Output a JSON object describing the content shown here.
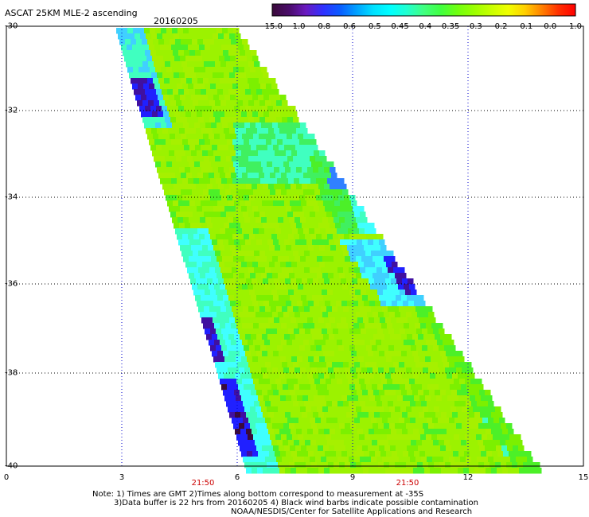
{
  "title": "ASCAT 25KM MLE-2 ascending",
  "date": "20160205",
  "colorbar": {
    "tick_labels": [
      "-15.0",
      "-1.0",
      "-0.8",
      "-0.6",
      "-0.5",
      "-0.45",
      "-0.4",
      "-0.35",
      "-0.3",
      "-0.2",
      "-0.1",
      "0.0",
      "1.0"
    ],
    "colors": [
      "#3a0a3a",
      "#5a10a0",
      "#1e1eff",
      "#0a6eff",
      "#00c0ff",
      "#00ffff",
      "#40ffc8",
      "#40ff40",
      "#7cff00",
      "#c0ff00",
      "#ffff00",
      "#ff8000",
      "#ff0000"
    ]
  },
  "map": {
    "lat_labels": [
      "-30",
      "-32",
      "-34",
      "-36",
      "-38",
      "-40"
    ],
    "lon_labels": [
      "0",
      "3",
      "6",
      "9",
      "12",
      "15"
    ],
    "time_labels": [
      "21:50",
      "21:50"
    ],
    "grid_color": "#0000cc"
  },
  "notes": {
    "line1": "Note: 1) Times are GMT 2)Times along bottom correspond to measurement at -35S",
    "line2": "3)Data buffer is 22 hrs from 20160205 4) Black wind barbs indicate possible contamination",
    "line3": "NOAA/NESDIS/Center for Satellite Applications and Research"
  }
}
